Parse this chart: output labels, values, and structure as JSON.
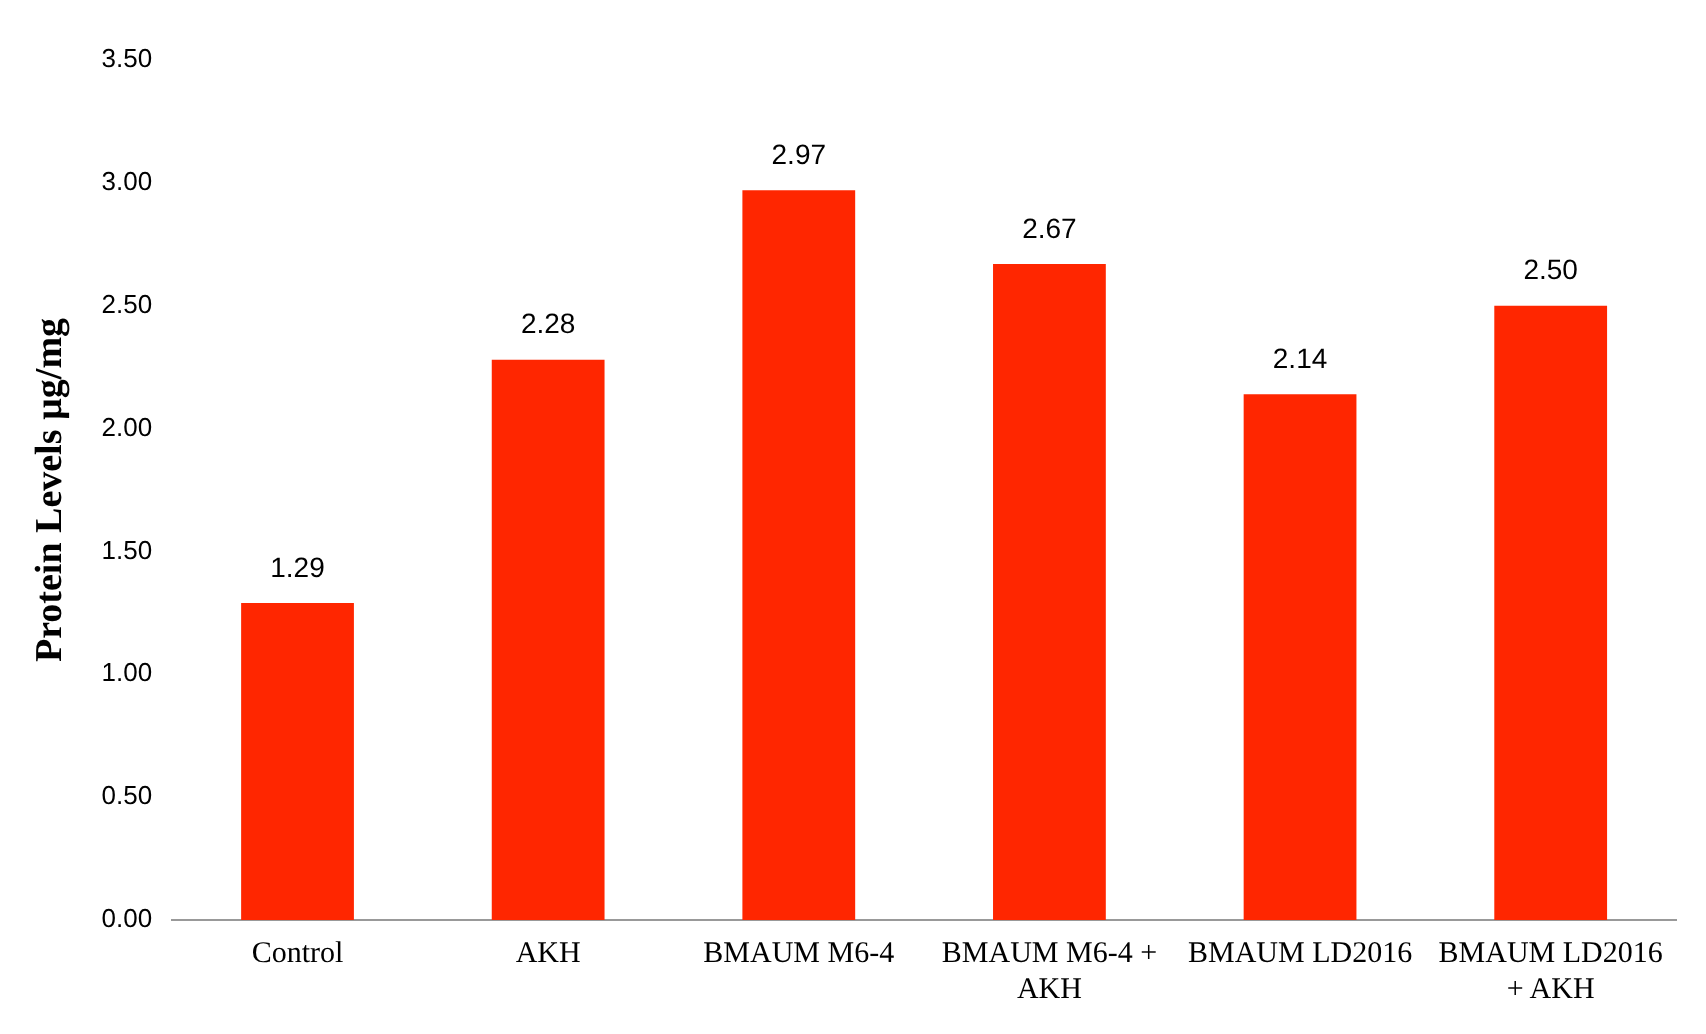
{
  "chart_data": {
    "type": "bar",
    "ylabel": "Protein Levels µg/mg",
    "categories": [
      "Control",
      "AKH",
      "BMAUM M6-4",
      "BMAUM M6-4 + AKH",
      "BMAUM LD2016",
      "BMAUM LD2016 + AKH"
    ],
    "values": [
      1.29,
      2.28,
      2.97,
      2.67,
      2.14,
      2.5
    ],
    "value_labels": [
      "1.29",
      "2.28",
      "2.97",
      "2.67",
      "2.14",
      "2.50"
    ],
    "color": "#ff2600",
    "ylim": [
      0,
      3.5
    ],
    "yticks": [
      {
        "value": 0,
        "label": "0.00"
      },
      {
        "value": 0.5,
        "label": "0.50"
      },
      {
        "value": 1,
        "label": "1.00"
      },
      {
        "value": 1.5,
        "label": "1.50"
      },
      {
        "value": 2,
        "label": "2.00"
      },
      {
        "value": 2.5,
        "label": "2.50"
      },
      {
        "value": 3,
        "label": "3.00"
      },
      {
        "value": 3.5,
        "label": "3.50"
      }
    ],
    "grid": false,
    "legend": false
  }
}
